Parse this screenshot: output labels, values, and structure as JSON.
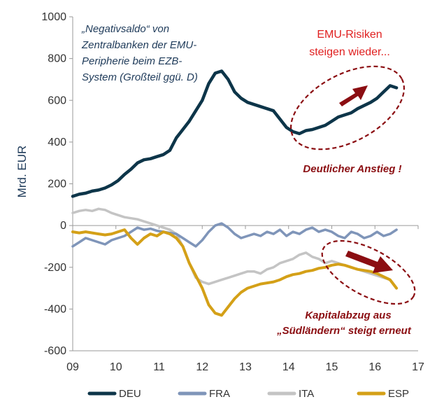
{
  "chart_data": {
    "type": "line",
    "title": "",
    "xlabel": "",
    "ylabel": "Mrd. EUR",
    "xlim": [
      9,
      17
    ],
    "ylim": [
      -600,
      1000
    ],
    "x_ticks": [
      "09",
      "10",
      "11",
      "12",
      "13",
      "14",
      "15",
      "16",
      "17"
    ],
    "y_ticks": [
      "1000",
      "800",
      "600",
      "400",
      "200",
      "0",
      "-200",
      "-400",
      "-600"
    ],
    "colors": {
      "DEU": "#0d3549",
      "FRA": "#7f95b9",
      "ITA": "#c4c4c4",
      "ESP": "#d4a017",
      "annotation_dark_red": "#8b0e12",
      "annotation_red": "#e02020",
      "annotation_blue": "#1f3b5a"
    },
    "series": [
      {
        "name": "DEU",
        "x": [
          9.0,
          9.15,
          9.3,
          9.45,
          9.6,
          9.75,
          9.9,
          10.05,
          10.2,
          10.35,
          10.5,
          10.65,
          10.8,
          10.95,
          11.1,
          11.25,
          11.4,
          11.55,
          11.7,
          11.85,
          12.0,
          12.15,
          12.3,
          12.45,
          12.6,
          12.75,
          12.9,
          13.05,
          13.2,
          13.35,
          13.5,
          13.65,
          13.8,
          13.95,
          14.1,
          14.25,
          14.4,
          14.55,
          14.7,
          14.85,
          15.0,
          15.15,
          15.3,
          15.45,
          15.6,
          15.75,
          15.9,
          16.05,
          16.2,
          16.35,
          16.5
        ],
        "values": [
          140,
          150,
          155,
          165,
          170,
          180,
          195,
          215,
          245,
          270,
          300,
          315,
          320,
          330,
          340,
          360,
          420,
          460,
          500,
          550,
          600,
          680,
          730,
          740,
          700,
          640,
          610,
          590,
          580,
          570,
          560,
          550,
          510,
          470,
          450,
          440,
          455,
          460,
          470,
          480,
          500,
          520,
          530,
          540,
          560,
          575,
          590,
          610,
          640,
          670,
          660
        ]
      },
      {
        "name": "FRA",
        "x": [
          9.0,
          9.15,
          9.3,
          9.45,
          9.6,
          9.75,
          9.9,
          10.05,
          10.2,
          10.35,
          10.5,
          10.65,
          10.8,
          10.95,
          11.1,
          11.25,
          11.4,
          11.55,
          11.7,
          11.85,
          12.0,
          12.15,
          12.3,
          12.45,
          12.6,
          12.75,
          12.9,
          13.05,
          13.2,
          13.35,
          13.5,
          13.65,
          13.8,
          13.95,
          14.1,
          14.25,
          14.4,
          14.55,
          14.7,
          14.85,
          15.0,
          15.15,
          15.3,
          15.45,
          15.6,
          15.75,
          15.9,
          16.05,
          16.2,
          16.35,
          16.5
        ],
        "values": [
          -100,
          -80,
          -60,
          -70,
          -80,
          -90,
          -70,
          -60,
          -50,
          -30,
          -10,
          -20,
          -15,
          -25,
          -30,
          -35,
          -40,
          -60,
          -80,
          -100,
          -70,
          -30,
          0,
          10,
          -10,
          -40,
          -60,
          -50,
          -40,
          -50,
          -30,
          -40,
          -20,
          -50,
          -30,
          -40,
          -20,
          -10,
          -30,
          -20,
          -30,
          -50,
          -60,
          -30,
          -40,
          -60,
          -50,
          -30,
          -50,
          -40,
          -20
        ]
      },
      {
        "name": "ITA",
        "x": [
          9.0,
          9.15,
          9.3,
          9.45,
          9.6,
          9.75,
          9.9,
          10.05,
          10.2,
          10.35,
          10.5,
          10.65,
          10.8,
          10.95,
          11.1,
          11.25,
          11.4,
          11.55,
          11.7,
          11.85,
          12.0,
          12.15,
          12.3,
          12.45,
          12.6,
          12.75,
          12.9,
          13.05,
          13.2,
          13.35,
          13.5,
          13.65,
          13.8,
          13.95,
          14.1,
          14.25,
          14.4,
          14.55,
          14.7,
          14.85,
          15.0,
          15.15,
          15.3,
          15.45,
          15.6,
          15.75,
          15.9,
          16.05,
          16.2,
          16.35,
          16.5
        ],
        "values": [
          60,
          70,
          75,
          70,
          80,
          75,
          60,
          50,
          40,
          35,
          30,
          20,
          10,
          0,
          -10,
          -20,
          -40,
          -100,
          -180,
          -250,
          -270,
          -280,
          -270,
          -260,
          -250,
          -240,
          -230,
          -220,
          -220,
          -230,
          -210,
          -200,
          -180,
          -170,
          -160,
          -140,
          -130,
          -150,
          -160,
          -180,
          -170,
          -180,
          -190,
          -200,
          -210,
          -220,
          -230,
          -240,
          -250,
          -260,
          -300
        ]
      },
      {
        "name": "ESP",
        "x": [
          9.0,
          9.15,
          9.3,
          9.45,
          9.6,
          9.75,
          9.9,
          10.05,
          10.2,
          10.35,
          10.5,
          10.65,
          10.8,
          10.95,
          11.1,
          11.25,
          11.4,
          11.55,
          11.7,
          11.85,
          12.0,
          12.15,
          12.3,
          12.45,
          12.6,
          12.75,
          12.9,
          13.05,
          13.2,
          13.35,
          13.5,
          13.65,
          13.8,
          13.95,
          14.1,
          14.25,
          14.4,
          14.55,
          14.7,
          14.85,
          15.0,
          15.15,
          15.3,
          15.45,
          15.6,
          15.75,
          15.9,
          16.05,
          16.2,
          16.35,
          16.5
        ],
        "values": [
          -30,
          -35,
          -30,
          -35,
          -40,
          -45,
          -40,
          -30,
          -20,
          -60,
          -90,
          -60,
          -40,
          -50,
          -30,
          -40,
          -60,
          -100,
          -180,
          -240,
          -300,
          -380,
          -420,
          -430,
          -390,
          -350,
          -320,
          -300,
          -290,
          -280,
          -275,
          -270,
          -260,
          -245,
          -235,
          -230,
          -220,
          -215,
          -205,
          -200,
          -190,
          -185,
          -190,
          -200,
          -210,
          -215,
          -220,
          -230,
          -245,
          -260,
          -300
        ]
      }
    ],
    "annotations": [
      {
        "text_lines": [
          "„Negativsaldo“ von",
          "Zentralbanken der EMU-",
          "Peripherie beim EZB-",
          "System (Großteil ggü. D)"
        ]
      },
      {
        "text_lines": [
          "EMU-Risiken",
          "steigen wieder..."
        ]
      },
      {
        "text_lines": [
          "Deutlicher Anstieg !"
        ]
      },
      {
        "text_lines": [
          "Kapitalabzug aus",
          "„Südländern“ steigt erneut"
        ]
      }
    ],
    "legend": {
      "placement": "bottom",
      "entries": [
        "DEU",
        "FRA",
        "ITA",
        "ESP"
      ]
    }
  }
}
